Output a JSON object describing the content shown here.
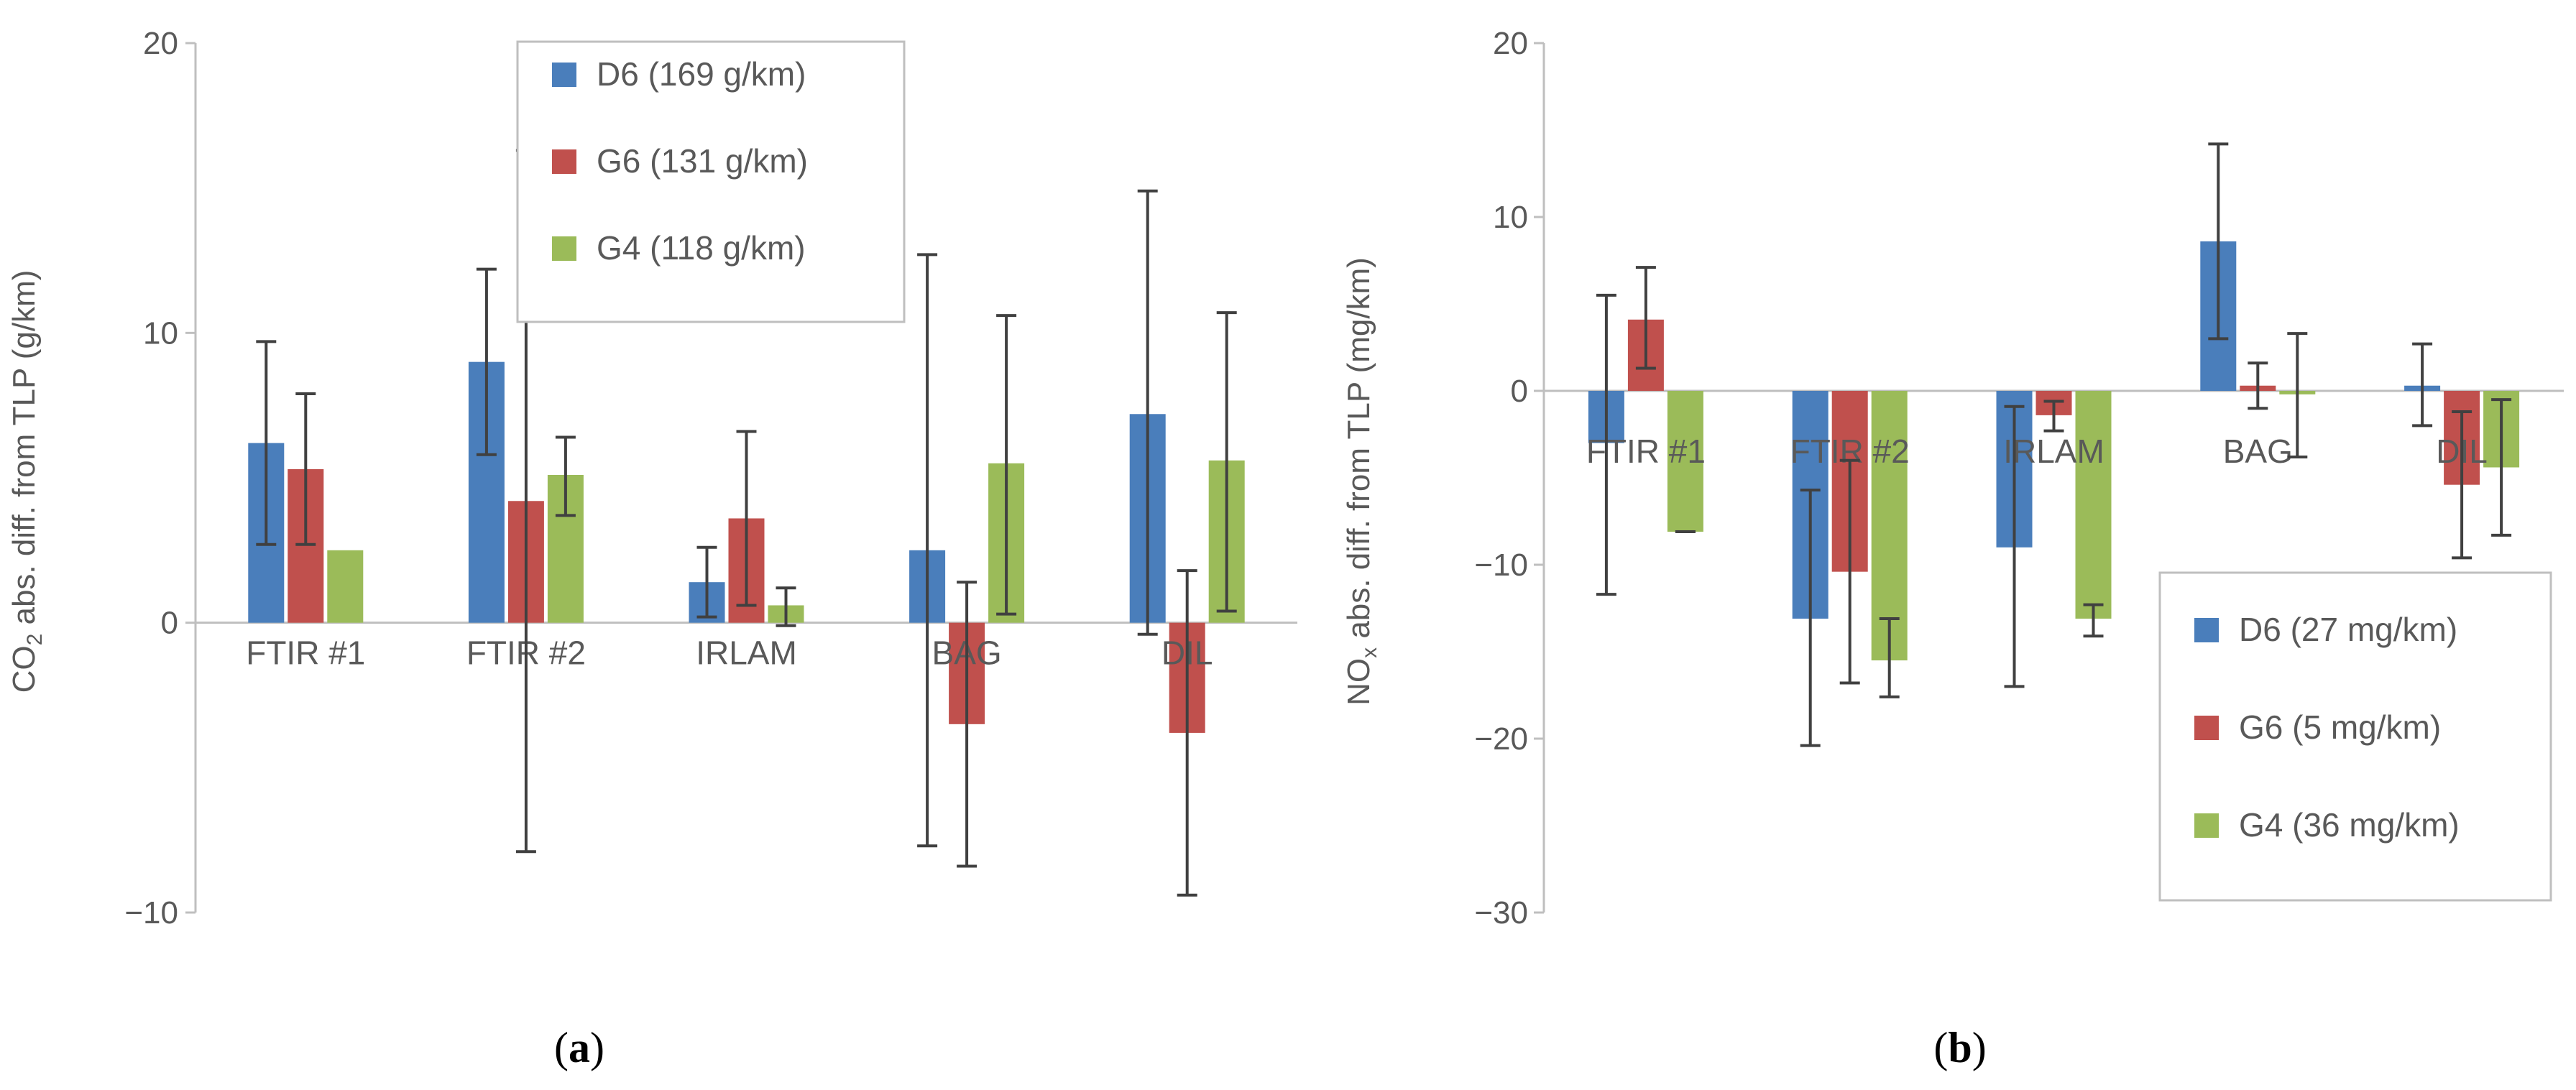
{
  "colors": {
    "D6": "#4a7ebb",
    "G6": "#c0504d",
    "G4": "#9bbb59",
    "axis": "#bfbfbf",
    "errorbar": "#404040",
    "text": "#595959"
  },
  "chart_data": [
    {
      "type": "bar",
      "panel_label": "a",
      "title": "",
      "ylabel_prefix": "CO",
      "ylabel_sub": "2",
      "ylabel_rest": " abs. diff. from TLP (g/km)",
      "xlabel": "",
      "ylim": [
        -10,
        20
      ],
      "yticks": [
        -10,
        0,
        10,
        20
      ],
      "ytick_labels": [
        "−10",
        "0",
        "10",
        "20"
      ],
      "categories": [
        "FTIR #1",
        "FTIR #2",
        "IRLAM",
        "BAG",
        "DIL"
      ],
      "legend_position": "top-right",
      "series": [
        {
          "name": "D6 (169 g/km)",
          "key": "D6",
          "values": [
            6.2,
            9.0,
            1.4,
            2.5,
            7.2
          ],
          "err_low": [
            2.7,
            5.8,
            0.2,
            -7.7,
            -0.4
          ],
          "err_high": [
            9.7,
            12.2,
            2.6,
            12.7,
            14.9
          ]
        },
        {
          "name": "G6 (131 g/km)",
          "key": "G6",
          "values": [
            5.3,
            4.2,
            3.6,
            -3.5,
            -3.8
          ],
          "err_low": [
            2.7,
            -7.9,
            0.6,
            -8.4,
            -9.4
          ],
          "err_high": [
            7.9,
            16.3,
            6.6,
            1.4,
            1.8
          ]
        },
        {
          "name": "G4 (118 g/km)",
          "key": "G4",
          "values": [
            2.5,
            5.1,
            0.6,
            5.5,
            5.6
          ],
          "err_low": [
            null,
            3.7,
            -0.1,
            0.3,
            0.4
          ],
          "err_high": [
            null,
            6.4,
            1.2,
            10.6,
            10.7
          ]
        }
      ]
    },
    {
      "type": "bar",
      "panel_label": "b",
      "title": "",
      "ylabel_prefix": "NO",
      "ylabel_sub": "x",
      "ylabel_rest": " abs. diff. from TLP (mg/km)",
      "xlabel": "",
      "ylim": [
        -30,
        20
      ],
      "yticks": [
        -30,
        -20,
        -10,
        0,
        10,
        20
      ],
      "ytick_labels": [
        "−30",
        "−20",
        "−10",
        "0",
        "10",
        "20"
      ],
      "categories": [
        "FTIR #1",
        "FTIR #2",
        "IRLAM",
        "BAG",
        "DIL"
      ],
      "legend_position": "bottom-right",
      "series": [
        {
          "name": "D6 (27 mg/km)",
          "key": "D6",
          "values": [
            -3.0,
            -13.1,
            -9.0,
            8.6,
            0.3
          ],
          "err_low": [
            -11.7,
            -20.4,
            -17.0,
            3.0,
            -2.0
          ],
          "err_high": [
            5.5,
            -5.7,
            -0.9,
            14.2,
            2.7
          ]
        },
        {
          "name": "G6 (5 mg/km)",
          "key": "G6",
          "values": [
            4.1,
            -10.4,
            -1.4,
            0.3,
            -5.4
          ],
          "err_low": [
            1.3,
            -16.8,
            -2.3,
            -1.0,
            -9.6
          ],
          "err_high": [
            7.1,
            -4.0,
            -0.6,
            1.6,
            -1.2
          ]
        },
        {
          "name": "G4 (36 mg/km)",
          "key": "G4",
          "values": [
            -8.1,
            -15.5,
            -13.1,
            -0.2,
            -4.4
          ],
          "err_low": [
            -8.1,
            -17.6,
            -14.1,
            -3.8,
            -8.3
          ],
          "err_high": [
            -8.1,
            -13.1,
            -12.3,
            3.3,
            -0.5
          ]
        }
      ]
    }
  ]
}
